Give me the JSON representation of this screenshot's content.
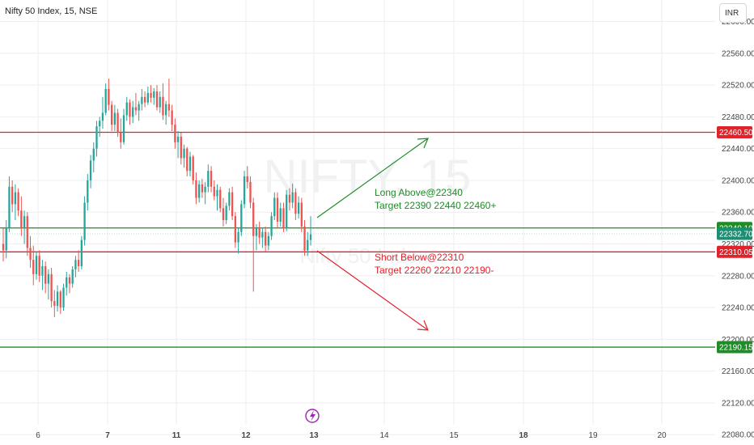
{
  "title": "Nifty 50 Index, 15, NSE",
  "currency": "INR",
  "watermark": {
    "main": "NIFTY, 15",
    "sub": "Nifty 50 Index"
  },
  "colors": {
    "up": "#26a69a",
    "down": "#ef5350",
    "resistance": "#e0222b",
    "support": "#1e8c27",
    "current": "#1b8f73",
    "grid": "#eeeeee",
    "long_text": "#1e8c27",
    "short_text": "#e0222b"
  },
  "levels": [
    {
      "name": "level-22460",
      "value": 22460.5,
      "label": "22460.50",
      "color": "#e0222b"
    },
    {
      "name": "level-22340",
      "value": 22340.1,
      "label": "22340.10",
      "color": "#1e8c27"
    },
    {
      "name": "level-22310",
      "value": 22310.05,
      "label": "22310.05",
      "color": "#e0222b"
    },
    {
      "name": "level-22190",
      "value": 22190.15,
      "label": "22190.15",
      "color": "#1e8c27"
    }
  ],
  "current_price": {
    "value": 22332.7,
    "label": "22332.70"
  },
  "annotations": {
    "long": {
      "line1": "Long Above@22340",
      "line2": "Target 22390 22440 22460+"
    },
    "short": {
      "line1": "Short Below@22310",
      "line2": "Target 22260 22210 22190-"
    }
  },
  "chart_data": {
    "type": "candlestick",
    "title": "Nifty 50 Index, 15, NSE",
    "y_range": [
      22067,
      22627
    ],
    "y_ticks": [
      22600,
      22560,
      22520,
      22480,
      22440,
      22400,
      22360,
      22320,
      22280,
      22240,
      22200,
      22160,
      22120,
      22080
    ],
    "x_ticks": [
      "6",
      "7",
      "11",
      "12",
      "13",
      "14",
      "15",
      "18",
      "19",
      "20"
    ],
    "candles": [
      {
        "o": 22320,
        "h": 22340,
        "l": 22298,
        "c": 22312
      },
      {
        "o": 22312,
        "h": 22350,
        "l": 22302,
        "c": 22340
      },
      {
        "o": 22340,
        "h": 22405,
        "l": 22335,
        "c": 22392
      },
      {
        "o": 22392,
        "h": 22400,
        "l": 22360,
        "c": 22370
      },
      {
        "o": 22370,
        "h": 22395,
        "l": 22350,
        "c": 22385
      },
      {
        "o": 22385,
        "h": 22390,
        "l": 22355,
        "c": 22362
      },
      {
        "o": 22362,
        "h": 22380,
        "l": 22330,
        "c": 22340
      },
      {
        "o": 22340,
        "h": 22362,
        "l": 22320,
        "c": 22355
      },
      {
        "o": 22355,
        "h": 22360,
        "l": 22305,
        "c": 22315
      },
      {
        "o": 22315,
        "h": 22330,
        "l": 22290,
        "c": 22300
      },
      {
        "o": 22300,
        "h": 22318,
        "l": 22268,
        "c": 22282
      },
      {
        "o": 22282,
        "h": 22310,
        "l": 22275,
        "c": 22305
      },
      {
        "o": 22305,
        "h": 22312,
        "l": 22272,
        "c": 22280
      },
      {
        "o": 22280,
        "h": 22300,
        "l": 22262,
        "c": 22292
      },
      {
        "o": 22292,
        "h": 22298,
        "l": 22258,
        "c": 22270
      },
      {
        "o": 22270,
        "h": 22288,
        "l": 22250,
        "c": 22282
      },
      {
        "o": 22282,
        "h": 22290,
        "l": 22240,
        "c": 22248
      },
      {
        "o": 22248,
        "h": 22262,
        "l": 22228,
        "c": 22242
      },
      {
        "o": 22242,
        "h": 22268,
        "l": 22235,
        "c": 22260
      },
      {
        "o": 22260,
        "h": 22262,
        "l": 22232,
        "c": 22240
      },
      {
        "o": 22240,
        "h": 22270,
        "l": 22236,
        "c": 22265
      },
      {
        "o": 22265,
        "h": 22285,
        "l": 22255,
        "c": 22278
      },
      {
        "o": 22278,
        "h": 22282,
        "l": 22258,
        "c": 22270
      },
      {
        "o": 22270,
        "h": 22292,
        "l": 22265,
        "c": 22288
      },
      {
        "o": 22288,
        "h": 22305,
        "l": 22278,
        "c": 22300
      },
      {
        "o": 22300,
        "h": 22312,
        "l": 22285,
        "c": 22292
      },
      {
        "o": 22292,
        "h": 22330,
        "l": 22288,
        "c": 22325
      },
      {
        "o": 22325,
        "h": 22380,
        "l": 22318,
        "c": 22372
      },
      {
        "o": 22372,
        "h": 22408,
        "l": 22362,
        "c": 22400
      },
      {
        "o": 22400,
        "h": 22432,
        "l": 22390,
        "c": 22425
      },
      {
        "o": 22425,
        "h": 22448,
        "l": 22410,
        "c": 22440
      },
      {
        "o": 22440,
        "h": 22475,
        "l": 22430,
        "c": 22468
      },
      {
        "o": 22468,
        "h": 22480,
        "l": 22455,
        "c": 22475
      },
      {
        "o": 22475,
        "h": 22505,
        "l": 22465,
        "c": 22485
      },
      {
        "o": 22485,
        "h": 22522,
        "l": 22482,
        "c": 22515
      },
      {
        "o": 22515,
        "h": 22528,
        "l": 22488,
        "c": 22495
      },
      {
        "o": 22495,
        "h": 22500,
        "l": 22462,
        "c": 22470
      },
      {
        "o": 22470,
        "h": 22495,
        "l": 22462,
        "c": 22485
      },
      {
        "o": 22485,
        "h": 22490,
        "l": 22455,
        "c": 22460
      },
      {
        "o": 22460,
        "h": 22478,
        "l": 22440,
        "c": 22448
      },
      {
        "o": 22448,
        "h": 22490,
        "l": 22445,
        "c": 22482
      },
      {
        "o": 22482,
        "h": 22505,
        "l": 22475,
        "c": 22498
      },
      {
        "o": 22498,
        "h": 22502,
        "l": 22470,
        "c": 22480
      },
      {
        "o": 22480,
        "h": 22500,
        "l": 22472,
        "c": 22492
      },
      {
        "o": 22492,
        "h": 22510,
        "l": 22482,
        "c": 22488
      },
      {
        "o": 22488,
        "h": 22500,
        "l": 22475,
        "c": 22496
      },
      {
        "o": 22496,
        "h": 22515,
        "l": 22488,
        "c": 22505
      },
      {
        "o": 22505,
        "h": 22512,
        "l": 22492,
        "c": 22498
      },
      {
        "o": 22498,
        "h": 22518,
        "l": 22495,
        "c": 22510
      },
      {
        "o": 22510,
        "h": 22520,
        "l": 22498,
        "c": 22504
      },
      {
        "o": 22504,
        "h": 22516,
        "l": 22495,
        "c": 22512
      },
      {
        "o": 22512,
        "h": 22520,
        "l": 22488,
        "c": 22492
      },
      {
        "o": 22492,
        "h": 22512,
        "l": 22485,
        "c": 22505
      },
      {
        "o": 22505,
        "h": 22522,
        "l": 22476,
        "c": 22482
      },
      {
        "o": 22482,
        "h": 22500,
        "l": 22470,
        "c": 22496
      },
      {
        "o": 22496,
        "h": 22528,
        "l": 22480,
        "c": 22488
      },
      {
        "o": 22488,
        "h": 22495,
        "l": 22462,
        "c": 22470
      },
      {
        "o": 22470,
        "h": 22478,
        "l": 22440,
        "c": 22448
      },
      {
        "o": 22448,
        "h": 22462,
        "l": 22428,
        "c": 22455
      },
      {
        "o": 22455,
        "h": 22460,
        "l": 22420,
        "c": 22428
      },
      {
        "o": 22428,
        "h": 22445,
        "l": 22416,
        "c": 22440
      },
      {
        "o": 22440,
        "h": 22442,
        "l": 22405,
        "c": 22412
      },
      {
        "o": 22412,
        "h": 22436,
        "l": 22405,
        "c": 22430
      },
      {
        "o": 22430,
        "h": 22432,
        "l": 22395,
        "c": 22400
      },
      {
        "o": 22400,
        "h": 22410,
        "l": 22370,
        "c": 22378
      },
      {
        "o": 22378,
        "h": 22400,
        "l": 22372,
        "c": 22395
      },
      {
        "o": 22395,
        "h": 22402,
        "l": 22378,
        "c": 22385
      },
      {
        "o": 22385,
        "h": 22398,
        "l": 22370,
        "c": 22392
      },
      {
        "o": 22392,
        "h": 22420,
        "l": 22385,
        "c": 22412
      },
      {
        "o": 22412,
        "h": 22418,
        "l": 22385,
        "c": 22392
      },
      {
        "o": 22392,
        "h": 22400,
        "l": 22375,
        "c": 22380
      },
      {
        "o": 22380,
        "h": 22395,
        "l": 22362,
        "c": 22388
      },
      {
        "o": 22388,
        "h": 22392,
        "l": 22360,
        "c": 22365
      },
      {
        "o": 22365,
        "h": 22378,
        "l": 22342,
        "c": 22350
      },
      {
        "o": 22350,
        "h": 22372,
        "l": 22345,
        "c": 22368
      },
      {
        "o": 22368,
        "h": 22390,
        "l": 22362,
        "c": 22385
      },
      {
        "o": 22385,
        "h": 22392,
        "l": 22350,
        "c": 22355
      },
      {
        "o": 22355,
        "h": 22360,
        "l": 22315,
        "c": 22322
      },
      {
        "o": 22322,
        "h": 22340,
        "l": 22308,
        "c": 22335
      },
      {
        "o": 22335,
        "h": 22375,
        "l": 22330,
        "c": 22370
      },
      {
        "o": 22370,
        "h": 22412,
        "l": 22365,
        "c": 22405
      },
      {
        "o": 22405,
        "h": 22418,
        "l": 22390,
        "c": 22398
      },
      {
        "o": 22398,
        "h": 22405,
        "l": 22365,
        "c": 22372
      },
      {
        "o": 22372,
        "h": 22378,
        "l": 22260,
        "c": 22330
      },
      {
        "o": 22330,
        "h": 22345,
        "l": 22312,
        "c": 22340
      },
      {
        "o": 22340,
        "h": 22348,
        "l": 22320,
        "c": 22328
      },
      {
        "o": 22328,
        "h": 22340,
        "l": 22315,
        "c": 22335
      },
      {
        "o": 22335,
        "h": 22342,
        "l": 22310,
        "c": 22318
      },
      {
        "o": 22318,
        "h": 22335,
        "l": 22312,
        "c": 22330
      },
      {
        "o": 22330,
        "h": 22360,
        "l": 22325,
        "c": 22355
      },
      {
        "o": 22355,
        "h": 22385,
        "l": 22350,
        "c": 22378
      },
      {
        "o": 22378,
        "h": 22385,
        "l": 22340,
        "c": 22348
      },
      {
        "o": 22348,
        "h": 22372,
        "l": 22342,
        "c": 22365
      },
      {
        "o": 22365,
        "h": 22372,
        "l": 22335,
        "c": 22340
      },
      {
        "o": 22340,
        "h": 22388,
        "l": 22336,
        "c": 22382
      },
      {
        "o": 22382,
        "h": 22390,
        "l": 22362,
        "c": 22372
      },
      {
        "o": 22372,
        "h": 22396,
        "l": 22365,
        "c": 22385
      },
      {
        "o": 22385,
        "h": 22390,
        "l": 22350,
        "c": 22358
      },
      {
        "o": 22358,
        "h": 22380,
        "l": 22352,
        "c": 22372
      },
      {
        "o": 22372,
        "h": 22378,
        "l": 22335,
        "c": 22342
      },
      {
        "o": 22342,
        "h": 22350,
        "l": 22305,
        "c": 22312
      },
      {
        "o": 22312,
        "h": 22335,
        "l": 22305,
        "c": 22325
      },
      {
        "o": 22325,
        "h": 22355,
        "l": 22318,
        "c": 22332
      }
    ]
  }
}
